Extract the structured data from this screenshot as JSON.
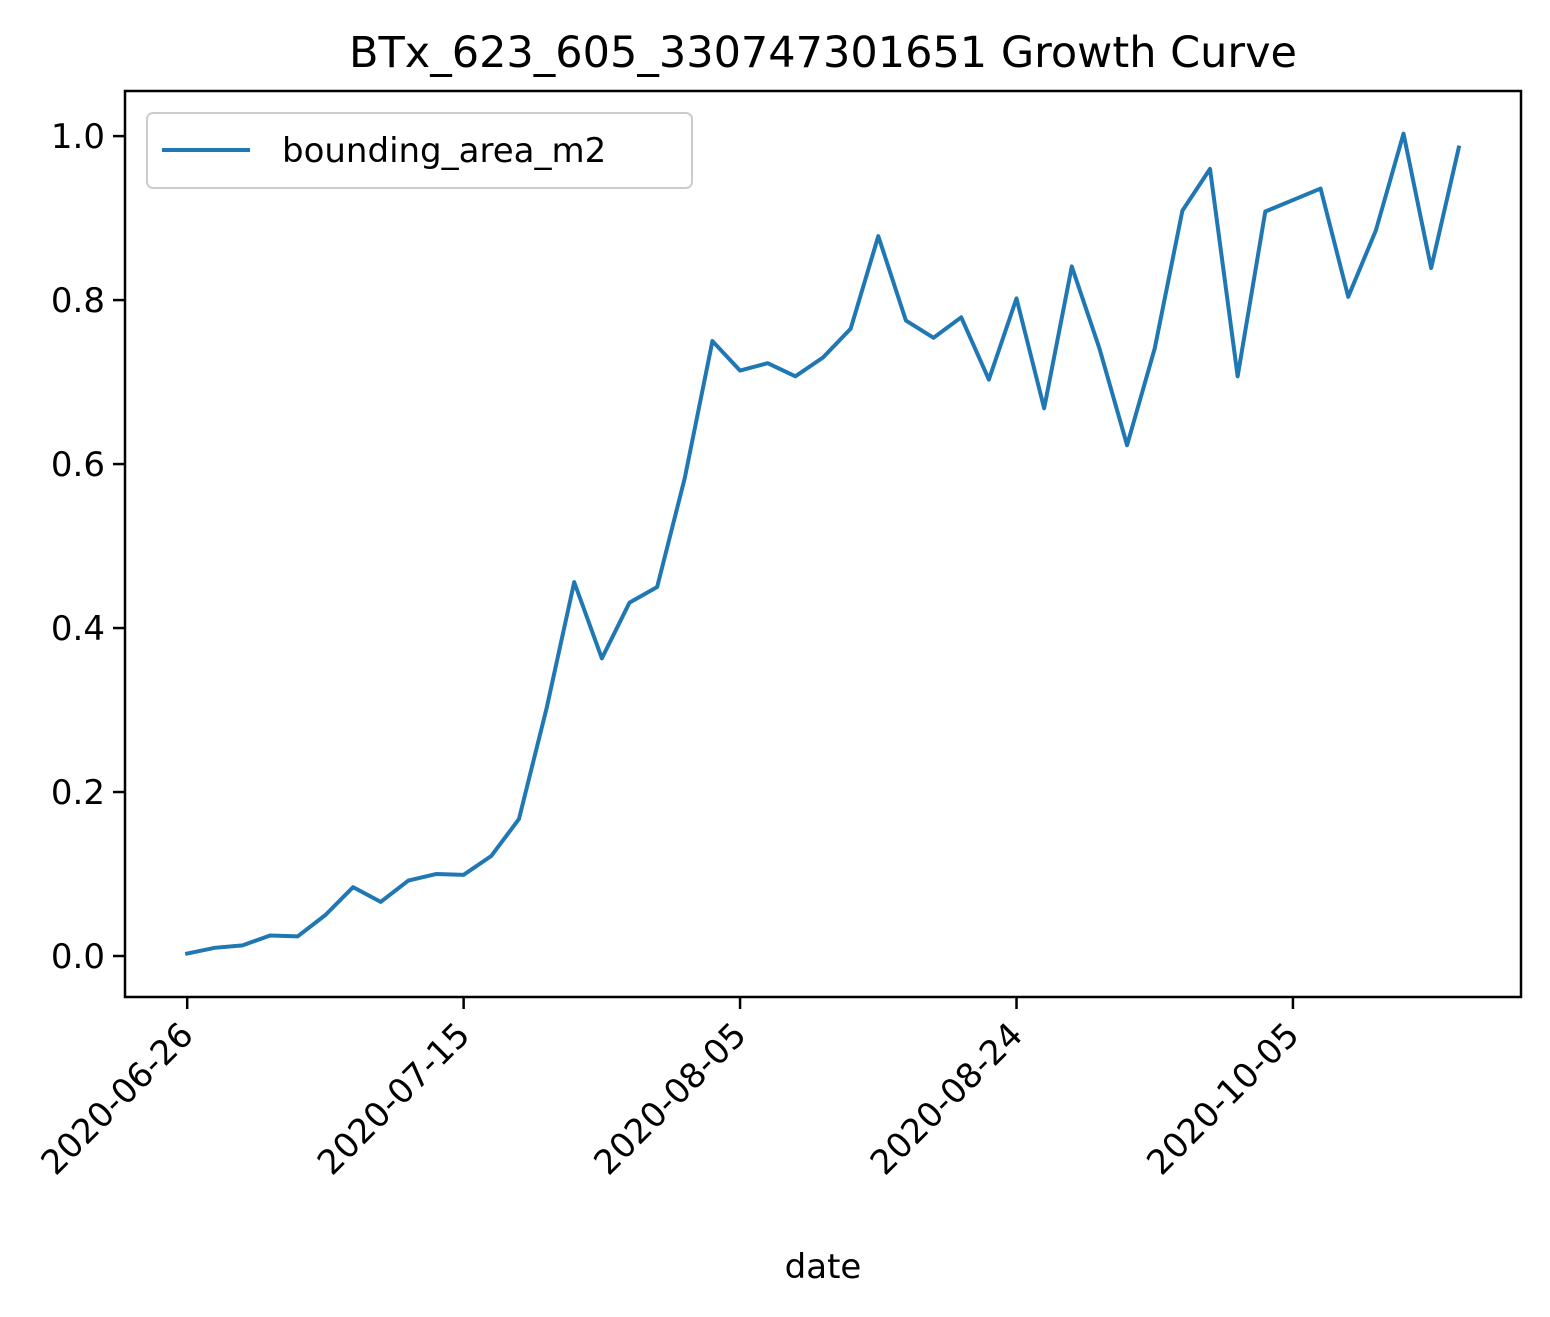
{
  "chart_data": {
    "type": "line",
    "title": "BTx_623_605_330747301651 Growth Curve",
    "xlabel": "date",
    "ylabel": "",
    "x_type": "category",
    "x_tick_labels": [
      "2020-06-26",
      "2020-07-15",
      "2020-08-05",
      "2020-08-24",
      "2020-10-05"
    ],
    "x_tick_positions": [
      0,
      10,
      20,
      30,
      40
    ],
    "x_tick_rotation": 45,
    "xlim": [
      -2.25,
      48.25
    ],
    "ylim": [
      -0.05,
      1.055
    ],
    "yticks": [
      0.0,
      0.2,
      0.4,
      0.6,
      0.8,
      1.0
    ],
    "ytick_labels": [
      "0.0",
      "0.2",
      "0.4",
      "0.6",
      "0.8",
      "1.0"
    ],
    "legend": {
      "placement": "top-left",
      "entries": [
        "bounding_area_m2"
      ]
    },
    "grid": false,
    "series": [
      {
        "name": "bounding_area_m2",
        "color": "#1f77b4",
        "x": [
          0,
          1,
          2,
          3,
          4,
          5,
          6,
          7,
          8,
          9,
          10,
          11,
          12,
          13,
          14,
          15,
          16,
          17,
          18,
          19,
          20,
          21,
          22,
          23,
          24,
          25,
          26,
          27,
          28,
          29,
          30,
          31,
          32,
          33,
          34,
          35,
          36,
          37,
          38,
          39,
          40,
          41,
          42,
          43,
          44,
          45,
          46
        ],
        "values": [
          0.003,
          0.01,
          0.013,
          0.025,
          0.024,
          0.05,
          0.084,
          0.066,
          0.092,
          0.1,
          0.099,
          0.122,
          0.167,
          0.302,
          0.456,
          0.363,
          0.431,
          0.45,
          0.583,
          0.75,
          0.714,
          0.723,
          0.707,
          0.73,
          0.765,
          0.878,
          0.775,
          0.754,
          0.779,
          0.703,
          0.802,
          0.668,
          0.841,
          0.741,
          0.623,
          0.741,
          0.909,
          0.96,
          0.707,
          0.908,
          0.922,
          0.936,
          0.804,
          0.885,
          1.003,
          0.839,
          0.986
        ]
      }
    ]
  }
}
